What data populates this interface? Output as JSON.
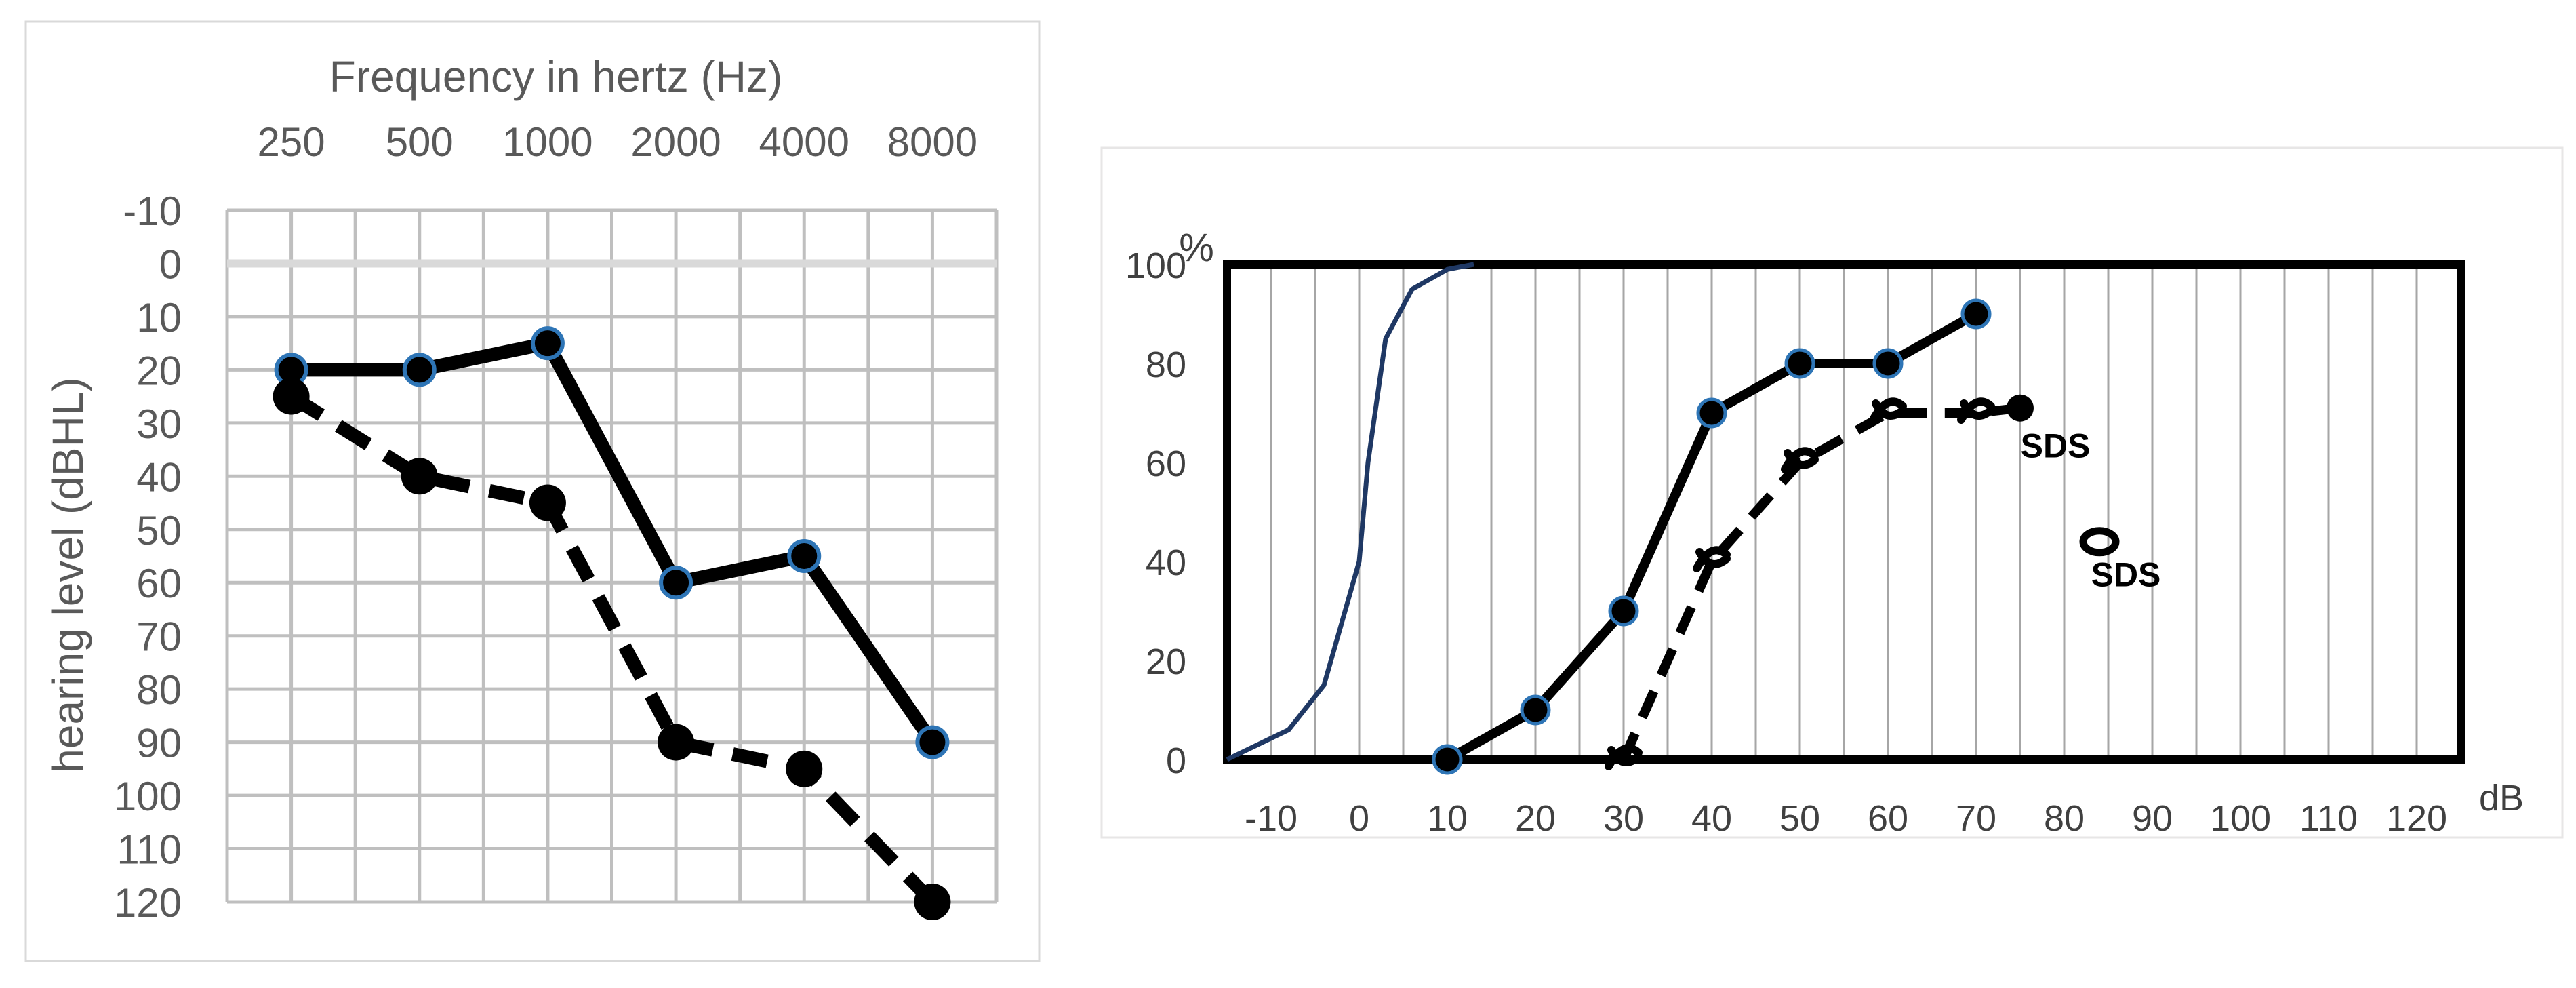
{
  "chart_data": [
    {
      "type": "line",
      "title": "Frequency in hertz (Hz)",
      "xlabel": "",
      "ylabel": "hearing level (dBHL)",
      "categories": [
        "250",
        "500",
        "1000",
        "2000",
        "4000",
        "8000"
      ],
      "y_ticks": [
        "-10",
        "0",
        "10",
        "20",
        "30",
        "40",
        "50",
        "60",
        "70",
        "80",
        "90",
        "100",
        "110",
        "120"
      ],
      "ylim": [
        -10,
        120
      ],
      "y_inverted": true,
      "x_axis_position": "top",
      "grid": true,
      "series": [
        {
          "values": [
            20,
            20,
            15,
            60,
            55,
            90
          ],
          "style": "solid",
          "marker": "circle-blue-edge",
          "color": "#000000",
          "marker_edge": "#2e75b6"
        },
        {
          "values": [
            25,
            40,
            45,
            90,
            95,
            120
          ],
          "style": "dashed",
          "marker": "circle-black",
          "color": "#000000"
        }
      ]
    },
    {
      "type": "line",
      "title": "",
      "xlabel": "dB",
      "ylabel": "%",
      "x_ticks": [
        "-10",
        "0",
        "10",
        "20",
        "30",
        "40",
        "50",
        "60",
        "70",
        "80",
        "90",
        "100",
        "110",
        "120"
      ],
      "y_ticks": [
        "0",
        "20",
        "40",
        "60",
        "80",
        "100"
      ],
      "xlim": [
        -15,
        125
      ],
      "ylim": [
        0,
        100
      ],
      "grid": "vertical",
      "series": [
        {
          "x": [
            -15,
            -8,
            -4,
            0,
            1,
            3,
            6,
            10,
            13
          ],
          "y": [
            0,
            6,
            15,
            40,
            60,
            85,
            95,
            99,
            100
          ],
          "style": "thin-solid",
          "color": "#1f3864"
        },
        {
          "x": [
            10,
            20,
            30,
            40,
            50,
            60,
            70
          ],
          "y": [
            0,
            10,
            30,
            70,
            80,
            80,
            90
          ],
          "style": "solid",
          "marker": "circle-blue-edge",
          "color": "#000000",
          "marker_edge": "#2e75b6"
        },
        {
          "x": [
            30,
            40,
            50,
            60,
            70,
            75
          ],
          "y": [
            0,
            40,
            60,
            70,
            70,
            71
          ],
          "style": "dashed",
          "marker": "x-symbol",
          "color": "#000000"
        }
      ],
      "annotations": [
        {
          "text": "SDS",
          "x": 79,
          "y": 61
        },
        {
          "text": "SDS",
          "x": 87,
          "y": 35
        }
      ],
      "open_circle_marker": {
        "x": 84,
        "y": 44
      }
    }
  ]
}
